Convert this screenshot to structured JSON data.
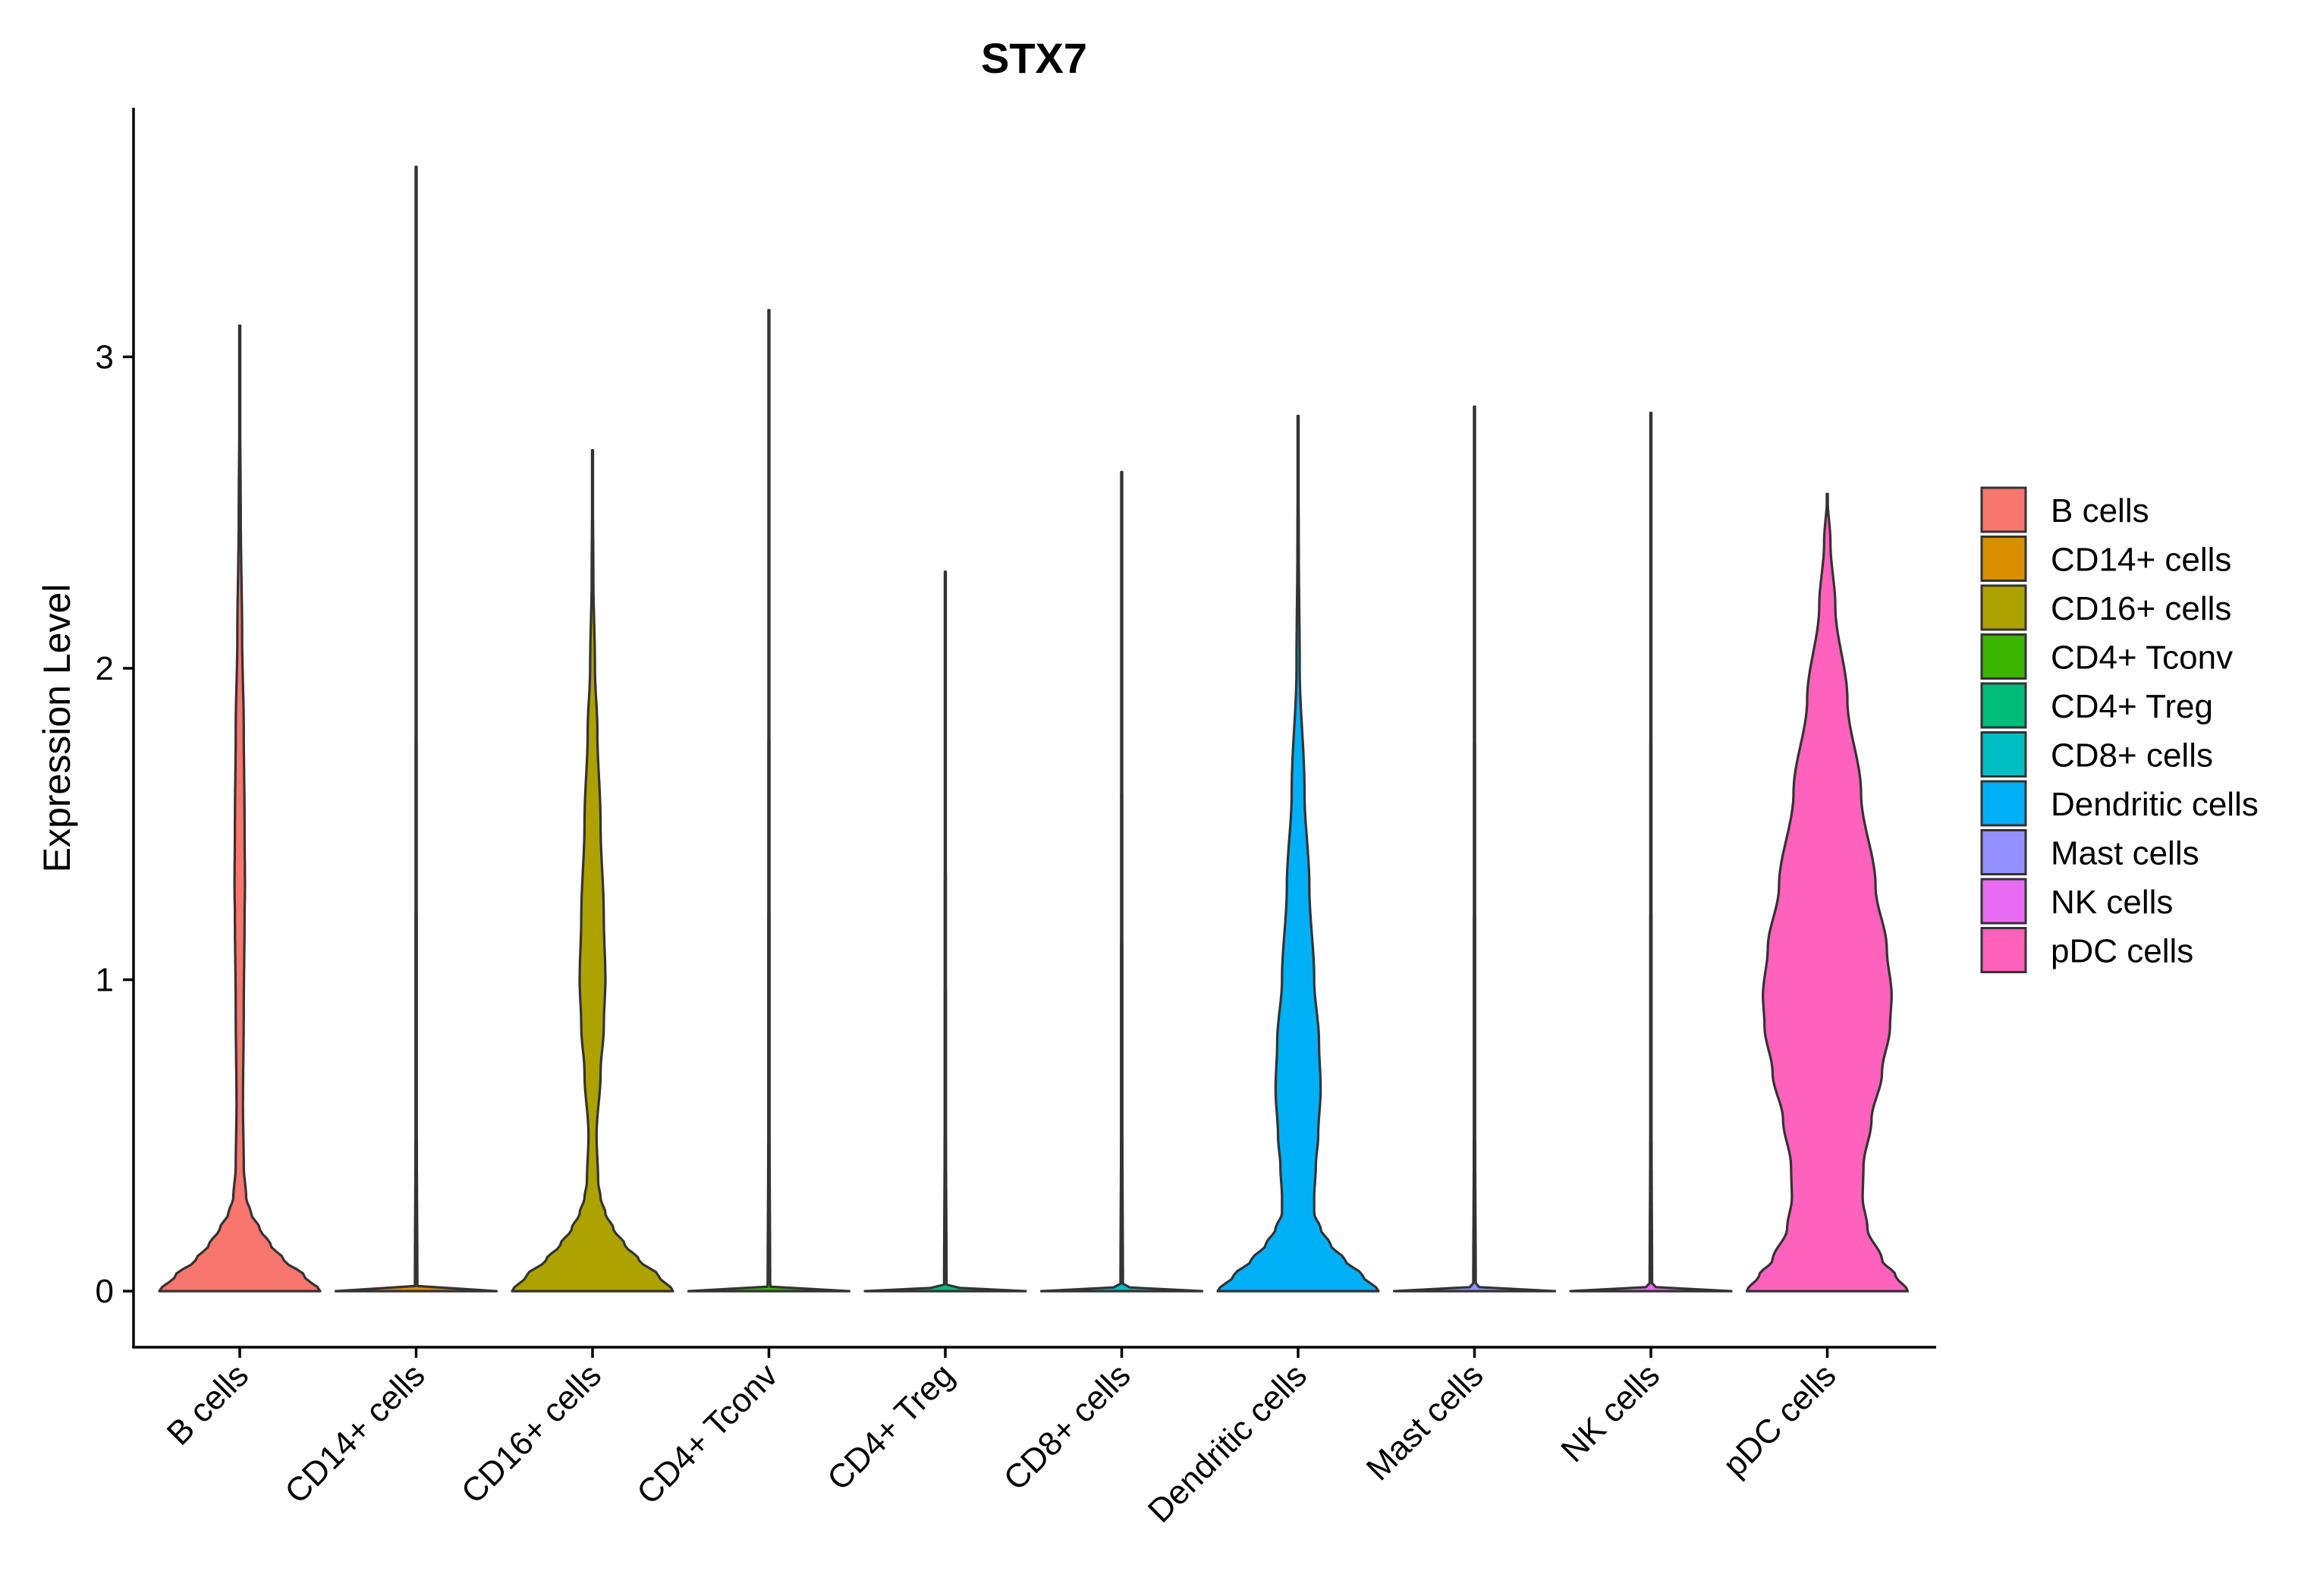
{
  "chart_data": {
    "type": "violin",
    "title": "STX7",
    "xlabel": "",
    "ylabel": "Expression Level",
    "ylim": [
      -0.18,
      3.8
    ],
    "yticks": [
      0,
      1,
      2,
      3
    ],
    "grid": false,
    "legend_position": "right",
    "categories": [
      "B cells",
      "CD14+ cells",
      "CD16+ cells",
      "CD4+ Tconv",
      "CD4+ Treg",
      "CD8+ cells",
      "Dendritic cells",
      "Mast cells",
      "NK cells",
      "pDC cells"
    ],
    "colors": [
      "#F8766D",
      "#DB8E00",
      "#AEA200",
      "#3CB500",
      "#00BD7C",
      "#00BFC4",
      "#00B0F6",
      "#9590FF",
      "#E76BF3",
      "#FF62BC"
    ],
    "series": [
      {
        "name": "B cells",
        "max": 3.1,
        "profile": [
          [
            0,
            1.0
          ],
          [
            0.05,
            0.8
          ],
          [
            0.1,
            0.55
          ],
          [
            0.15,
            0.38
          ],
          [
            0.2,
            0.25
          ],
          [
            0.25,
            0.14
          ],
          [
            0.3,
            0.08
          ],
          [
            0.4,
            0.05
          ],
          [
            0.6,
            0.04
          ],
          [
            0.9,
            0.05
          ],
          [
            1.2,
            0.06
          ],
          [
            1.3,
            0.065
          ],
          [
            1.5,
            0.06
          ],
          [
            1.8,
            0.05
          ],
          [
            2.1,
            0.03
          ],
          [
            2.5,
            0.012
          ],
          [
            2.8,
            0.005
          ],
          [
            3.1,
            0.0
          ]
        ]
      },
      {
        "name": "CD14+ cells",
        "max": 3.61,
        "profile": [
          [
            0,
            1.0
          ],
          [
            0.005,
            0.4
          ],
          [
            0.015,
            0.015
          ],
          [
            0.5,
            0.008
          ],
          [
            2.0,
            0.006
          ],
          [
            3.61,
            0.0
          ]
        ]
      },
      {
        "name": "CD16+ cells",
        "max": 2.7,
        "profile": [
          [
            0,
            1.0
          ],
          [
            0.05,
            0.82
          ],
          [
            0.1,
            0.58
          ],
          [
            0.15,
            0.4
          ],
          [
            0.2,
            0.26
          ],
          [
            0.25,
            0.16
          ],
          [
            0.3,
            0.1
          ],
          [
            0.35,
            0.07
          ],
          [
            0.5,
            0.05
          ],
          [
            0.7,
            0.1
          ],
          [
            0.85,
            0.14
          ],
          [
            1.0,
            0.16
          ],
          [
            1.2,
            0.14
          ],
          [
            1.5,
            0.1
          ],
          [
            1.8,
            0.06
          ],
          [
            2.0,
            0.03
          ],
          [
            2.3,
            0.01
          ],
          [
            2.7,
            0.0
          ]
        ]
      },
      {
        "name": "CD4+ Tconv",
        "max": 3.15,
        "profile": [
          [
            0,
            1.0
          ],
          [
            0.005,
            0.4
          ],
          [
            0.015,
            0.015
          ],
          [
            0.5,
            0.008
          ],
          [
            2.0,
            0.006
          ],
          [
            3.15,
            0.0
          ]
        ]
      },
      {
        "name": "CD4+ Treg",
        "max": 2.31,
        "profile": [
          [
            0,
            1.0
          ],
          [
            0.005,
            0.4
          ],
          [
            0.015,
            0.015
          ],
          [
            0.5,
            0.008
          ],
          [
            1.5,
            0.006
          ],
          [
            2.31,
            0.0
          ]
        ]
      },
      {
        "name": "CD8+ cells",
        "max": 2.63,
        "profile": [
          [
            0,
            1.0
          ],
          [
            0.005,
            0.4
          ],
          [
            0.015,
            0.015
          ],
          [
            0.5,
            0.008
          ],
          [
            1.8,
            0.006
          ],
          [
            2.63,
            0.0
          ]
        ]
      },
      {
        "name": "Dendritic cells",
        "max": 2.81,
        "profile": [
          [
            0,
            1.0
          ],
          [
            0.05,
            0.8
          ],
          [
            0.1,
            0.58
          ],
          [
            0.15,
            0.4
          ],
          [
            0.2,
            0.28
          ],
          [
            0.25,
            0.2
          ],
          [
            0.3,
            0.2
          ],
          [
            0.4,
            0.22
          ],
          [
            0.5,
            0.25
          ],
          [
            0.65,
            0.28
          ],
          [
            0.8,
            0.26
          ],
          [
            1.0,
            0.2
          ],
          [
            1.3,
            0.14
          ],
          [
            1.6,
            0.08
          ],
          [
            2.0,
            0.02
          ],
          [
            2.4,
            0.008
          ],
          [
            2.81,
            0.0
          ]
        ]
      },
      {
        "name": "Mast cells",
        "max": 2.84,
        "profile": [
          [
            0,
            1.0
          ],
          [
            0.005,
            0.4
          ],
          [
            0.015,
            0.015
          ],
          [
            0.5,
            0.008
          ],
          [
            2.0,
            0.006
          ],
          [
            2.84,
            0.0
          ]
        ]
      },
      {
        "name": "NK cells",
        "max": 2.82,
        "profile": [
          [
            0,
            1.0
          ],
          [
            0.005,
            0.4
          ],
          [
            0.015,
            0.015
          ],
          [
            0.5,
            0.008
          ],
          [
            2.0,
            0.006
          ],
          [
            2.82,
            0.0
          ]
        ]
      },
      {
        "name": "pDC cells",
        "max": 2.56,
        "profile": [
          [
            0,
            1.0
          ],
          [
            0.05,
            0.85
          ],
          [
            0.1,
            0.68
          ],
          [
            0.2,
            0.5
          ],
          [
            0.3,
            0.44
          ],
          [
            0.4,
            0.45
          ],
          [
            0.55,
            0.55
          ],
          [
            0.7,
            0.68
          ],
          [
            0.85,
            0.78
          ],
          [
            0.95,
            0.8
          ],
          [
            1.1,
            0.74
          ],
          [
            1.3,
            0.6
          ],
          [
            1.6,
            0.42
          ],
          [
            1.9,
            0.25
          ],
          [
            2.2,
            0.1
          ],
          [
            2.4,
            0.04
          ],
          [
            2.56,
            0.0
          ]
        ]
      }
    ]
  }
}
